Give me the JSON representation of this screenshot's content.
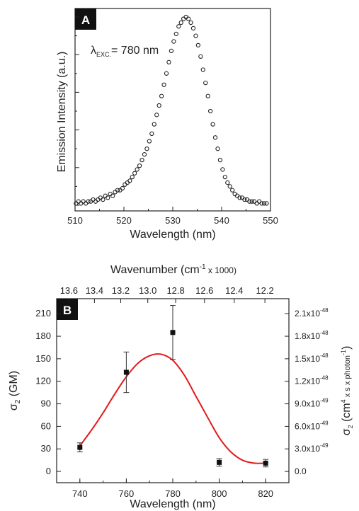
{
  "chart_data": [
    {
      "type": "scatter",
      "panel_label": "A",
      "annotation": {
        "lambda_sub": "EXC.",
        "text": "= 780 nm"
      },
      "xlabel": "Wavelength (nm)",
      "ylabel": "Emission Intensity (a.u.)",
      "xlim": [
        510,
        550
      ],
      "ylim": [
        0,
        1.0
      ],
      "x_ticks": [
        510,
        520,
        530,
        540,
        550
      ],
      "x_tick_labels": [
        "510",
        "520",
        "530",
        "540",
        "550"
      ],
      "y_tick_labels_shown": false,
      "marker": "open-circle",
      "peak": {
        "center": 533.2,
        "amplitude": 0.99,
        "baseline": 0.01,
        "sigma_left": 4.1,
        "sigma_right": 3.8
      },
      "series": [
        {
          "x": [
            510.2,
            510.7,
            511.2,
            511.7,
            512.2,
            512.7,
            513.2,
            513.7,
            514.2,
            514.7,
            515.2,
            515.7,
            516.2,
            516.7,
            517.2,
            517.7,
            518.2,
            518.7,
            519.2,
            519.7,
            520.2,
            520.7,
            521.2,
            521.7,
            522.2,
            522.7,
            523.2,
            523.7,
            524.2,
            524.7,
            525.2,
            525.7,
            526.2,
            526.7,
            527.2,
            527.7,
            528.2,
            528.7,
            529.2,
            529.7,
            530.2,
            530.7,
            531.2,
            531.7,
            532.2,
            532.7,
            533.2,
            533.7,
            534.2,
            534.7,
            535.2,
            535.7,
            536.2,
            536.7,
            537.2,
            537.7,
            538.2,
            538.7,
            539.2,
            539.7,
            540.2,
            540.7,
            541.2,
            541.7,
            542.2,
            542.7,
            543.2,
            543.7,
            544.2,
            544.7,
            545.2,
            545.7,
            546.2,
            546.7,
            547.2,
            547.7,
            548.2,
            548.7,
            549.2
          ],
          "y": [
            0.01,
            0.02,
            0.01,
            0.02,
            0.01,
            0.02,
            0.02,
            0.03,
            0.02,
            0.03,
            0.04,
            0.03,
            0.05,
            0.04,
            0.06,
            0.05,
            0.07,
            0.08,
            0.08,
            0.09,
            0.11,
            0.12,
            0.13,
            0.15,
            0.17,
            0.19,
            0.21,
            0.24,
            0.27,
            0.3,
            0.34,
            0.38,
            0.43,
            0.48,
            0.53,
            0.58,
            0.64,
            0.7,
            0.76,
            0.82,
            0.87,
            0.91,
            0.95,
            0.97,
            0.99,
            1.0,
            0.99,
            0.97,
            0.94,
            0.9,
            0.85,
            0.79,
            0.72,
            0.65,
            0.58,
            0.5,
            0.43,
            0.36,
            0.3,
            0.24,
            0.19,
            0.15,
            0.12,
            0.1,
            0.08,
            0.06,
            0.05,
            0.04,
            0.04,
            0.03,
            0.03,
            0.02,
            0.02,
            0.02,
            0.01,
            0.02,
            0.01,
            0.01,
            0.01
          ]
        }
      ]
    },
    {
      "type": "scatter",
      "panel_label": "B",
      "xlabel": "Wavelength (nm)",
      "ylabel": "σ",
      "ylabel_sub": "2",
      "ylabel_unit": " (GM)",
      "top_xlabel": "Wavenumber (cm",
      "top_xlabel_sup": "-1",
      "top_xlabel_rest": " x 1000)",
      "right_ylabel": "σ",
      "right_ylabel_sub": "2",
      "right_ylabel_a": " (cm",
      "right_ylabel_sup1": "4",
      "right_ylabel_b": " x s x photon",
      "right_ylabel_sup2": "-1",
      "right_ylabel_c": ")",
      "xlim": [
        730,
        830
      ],
      "ylim": [
        -15,
        230
      ],
      "x_ticks": [
        740,
        760,
        780,
        800,
        820
      ],
      "x_tick_labels": [
        "740",
        "760",
        "780",
        "800",
        "820"
      ],
      "y_ticks": [
        0,
        30,
        60,
        90,
        120,
        150,
        180,
        210
      ],
      "y_tick_labels": [
        "0",
        "30",
        "60",
        "90",
        "120",
        "150",
        "180",
        "210"
      ],
      "top_ticks": [
        13.6,
        13.4,
        13.2,
        13.0,
        12.8,
        12.6,
        12.4,
        12.2
      ],
      "top_tick_labels": [
        "13.6",
        "13.4",
        "13.2",
        "13.0",
        "12.8",
        "12.6",
        "12.4",
        "12.2"
      ],
      "right_ticks": [
        0,
        30,
        60,
        90,
        120,
        150,
        180,
        210
      ],
      "right_tick_mantissas": [
        "0.0",
        "3.0x10",
        "6.0x10",
        "9.0x10",
        "1.2x10",
        "1.5x10",
        "1.8x10",
        "2.1x10"
      ],
      "right_tick_exponents": [
        "",
        "-49",
        "-49",
        "-49",
        "-48",
        "-48",
        "-48",
        "-48"
      ],
      "points": {
        "x": [
          740,
          760,
          780,
          800,
          820
        ],
        "y": [
          32,
          132,
          185,
          12,
          11
        ],
        "err": [
          6,
          27,
          36,
          5,
          5
        ]
      },
      "fit_curve": {
        "color": "#e31a1c",
        "x": [
          740,
          745,
          750,
          755,
          760,
          765,
          770,
          775,
          780,
          785,
          790,
          795,
          800,
          805,
          810,
          815,
          820
        ],
        "y": [
          34,
          55,
          78,
          103,
          126,
          144,
          154,
          156,
          148,
          128,
          100,
          72,
          45,
          26,
          15,
          11,
          11
        ]
      }
    }
  ]
}
